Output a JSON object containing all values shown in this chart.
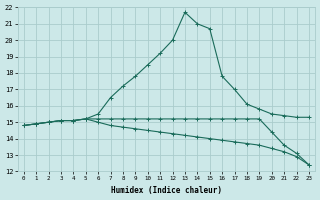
{
  "x": [
    0,
    1,
    2,
    3,
    4,
    5,
    6,
    7,
    8,
    9,
    10,
    11,
    12,
    13,
    14,
    15,
    16,
    17,
    18,
    19,
    20,
    21,
    22,
    23
  ],
  "line1": [
    14.8,
    14.9,
    15.0,
    15.1,
    15.1,
    15.2,
    15.5,
    16.5,
    17.2,
    17.8,
    18.5,
    19.2,
    20.0,
    21.7,
    21.0,
    20.7,
    17.8,
    17.0,
    16.1,
    15.8,
    15.5,
    15.4,
    15.3,
    15.3
  ],
  "line2": [
    14.8,
    14.9,
    15.0,
    15.1,
    15.1,
    15.2,
    15.2,
    15.2,
    15.2,
    15.2,
    15.2,
    15.2,
    15.2,
    15.2,
    15.2,
    15.2,
    15.2,
    15.2,
    15.2,
    15.2,
    14.4,
    13.6,
    13.1,
    12.4
  ],
  "line3": [
    14.8,
    14.9,
    15.0,
    15.1,
    15.1,
    15.2,
    15.0,
    14.8,
    14.7,
    14.6,
    14.5,
    14.4,
    14.3,
    14.2,
    14.1,
    14.0,
    13.9,
    13.8,
    13.7,
    13.6,
    13.4,
    13.2,
    12.9,
    12.4
  ],
  "bg_color": "#cce8e8",
  "grid_color": "#aacccc",
  "line_color": "#1a6b5a",
  "xlabel": "Humidex (Indice chaleur)",
  "ylim": [
    12,
    22
  ],
  "xlim": [
    -0.5,
    23.5
  ],
  "yticks": [
    12,
    13,
    14,
    15,
    16,
    17,
    18,
    19,
    20,
    21,
    22
  ],
  "xticks": [
    0,
    1,
    2,
    3,
    4,
    5,
    6,
    7,
    8,
    9,
    10,
    11,
    12,
    13,
    14,
    15,
    16,
    17,
    18,
    19,
    20,
    21,
    22,
    23
  ]
}
